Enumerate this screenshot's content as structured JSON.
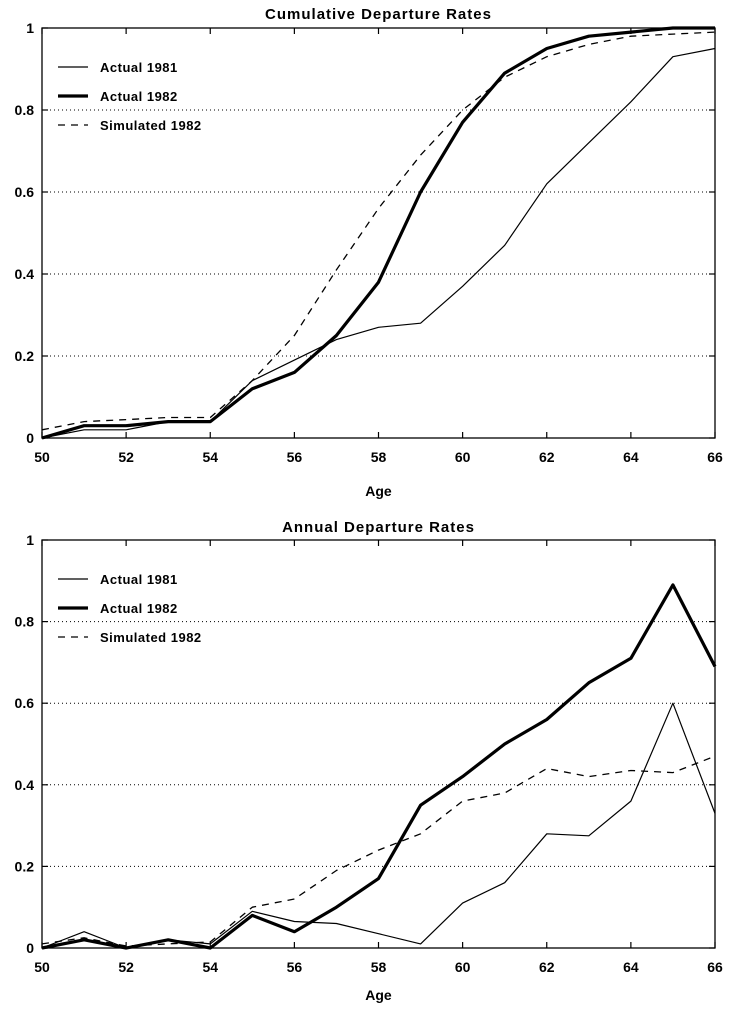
{
  "chart_data": [
    {
      "type": "line",
      "title": "Cumulative Departure Rates",
      "xlabel": "Age",
      "ylabel": "",
      "xlim": [
        50,
        66
      ],
      "ylim": [
        0,
        1
      ],
      "xticks": [
        "50",
        "52",
        "54",
        "56",
        "58",
        "60",
        "62",
        "64",
        "66"
      ],
      "yticks": [
        "0",
        "0.2",
        "0.4",
        "0.6",
        "0.8",
        "1"
      ],
      "grid": "horizontal dotted",
      "legend_position": "top-left",
      "x": [
        50,
        51,
        52,
        53,
        54,
        55,
        56,
        57,
        58,
        59,
        60,
        61,
        62,
        63,
        64,
        65,
        66
      ],
      "series": [
        {
          "name": "Actual 1981",
          "style": "thin",
          "values": [
            0.0,
            0.02,
            0.02,
            0.04,
            0.04,
            0.14,
            0.19,
            0.24,
            0.27,
            0.28,
            0.37,
            0.47,
            0.62,
            0.72,
            0.82,
            0.93,
            0.95
          ]
        },
        {
          "name": "Actual 1982",
          "style": "thick",
          "values": [
            0.0,
            0.03,
            0.03,
            0.04,
            0.04,
            0.12,
            0.16,
            0.25,
            0.38,
            0.6,
            0.77,
            0.89,
            0.95,
            0.98,
            0.99,
            1.0,
            1.0
          ]
        },
        {
          "name": "Simulated 1982",
          "style": "dashed",
          "values": [
            0.02,
            0.04,
            0.045,
            0.05,
            0.05,
            0.14,
            0.25,
            0.41,
            0.56,
            0.69,
            0.8,
            0.88,
            0.93,
            0.96,
            0.98,
            0.985,
            0.99
          ]
        }
      ]
    },
    {
      "type": "line",
      "title": "Annual Departure Rates",
      "xlabel": "Age",
      "ylabel": "",
      "xlim": [
        50,
        66
      ],
      "ylim": [
        0,
        1
      ],
      "xticks": [
        "50",
        "52",
        "54",
        "56",
        "58",
        "60",
        "62",
        "64",
        "66"
      ],
      "yticks": [
        "0",
        "0.2",
        "0.4",
        "0.6",
        "0.8",
        "1"
      ],
      "grid": "horizontal dotted",
      "legend_position": "top-left",
      "x": [
        50,
        51,
        52,
        53,
        54,
        55,
        56,
        57,
        58,
        59,
        60,
        61,
        62,
        63,
        64,
        65,
        66
      ],
      "series": [
        {
          "name": "Actual 1981",
          "style": "thin",
          "values": [
            0.0,
            0.04,
            0.0,
            0.02,
            0.01,
            0.09,
            0.065,
            0.06,
            0.035,
            0.01,
            0.11,
            0.16,
            0.28,
            0.275,
            0.36,
            0.6,
            0.33
          ]
        },
        {
          "name": "Actual 1982",
          "style": "thick",
          "values": [
            0.0,
            0.02,
            0.0,
            0.02,
            0.0,
            0.08,
            0.04,
            0.1,
            0.17,
            0.35,
            0.42,
            0.5,
            0.56,
            0.65,
            0.71,
            0.89,
            0.69
          ]
        },
        {
          "name": "Simulated 1982",
          "style": "dashed",
          "values": [
            0.01,
            0.025,
            0.005,
            0.01,
            0.015,
            0.1,
            0.12,
            0.19,
            0.24,
            0.28,
            0.36,
            0.38,
            0.44,
            0.42,
            0.435,
            0.43,
            0.47
          ]
        }
      ]
    }
  ]
}
